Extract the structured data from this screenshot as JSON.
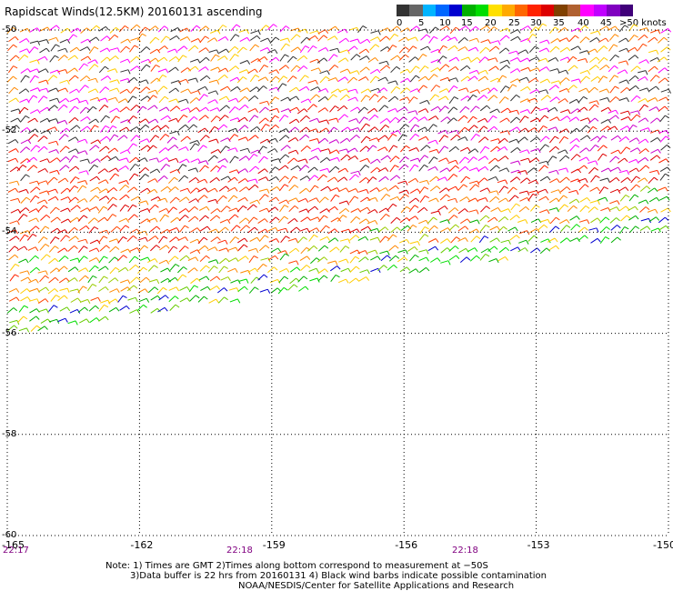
{
  "title": "Rapidscat Winds(12.5KM) 20160131 ascending",
  "legend": {
    "colors": [
      "#333333",
      "#666666",
      "#00b4ff",
      "#0066ff",
      "#0000d0",
      "#00b000",
      "#00dd00",
      "#ffe000",
      "#ffaa00",
      "#ff6600",
      "#ff2200",
      "#dd0000",
      "#804000",
      "#b06030",
      "#ff00ff",
      "#c000ff",
      "#8000c0",
      "#40007a"
    ],
    "ticks": [
      "0",
      "5",
      "10",
      "15",
      "20",
      "25",
      "30",
      "35",
      "40",
      "45",
      ">50 knots"
    ]
  },
  "lat_labels": [
    "-50",
    "-52",
    "-54",
    "-56",
    "-58",
    "-60"
  ],
  "lon_labels": [
    "-165",
    "-162",
    "-159",
    "-156",
    "-153",
    "-150"
  ],
  "time_labels": [
    "22:17",
    "22:18",
    "22:18"
  ],
  "notes": [
    "Note: 1) Times are GMT 2)Times along bottom correspond to measurement at −50S",
    "3)Data buffer is 22 hrs from 20160131 4) Black wind barbs indicate possible contamination",
    "NOAA/NESDIS/Center for Satellite Applications and Research"
  ],
  "map": {
    "lat_range": [
      -60,
      -50
    ],
    "lon_range": [
      -165,
      -150
    ],
    "grid": "dotted",
    "wind_field": {
      "bands": [
        {
          "lat_from": -50,
          "lat_to": -51.5,
          "speed_knots": "20-45",
          "colors": [
            "#ffcc00",
            "#ff8800",
            "#ff4400",
            "#ff00ff",
            "#333333"
          ]
        },
        {
          "lat_from": -51.5,
          "lat_to": -53,
          "speed_knots": "30-50",
          "colors": [
            "#ff00ff",
            "#cc00cc",
            "#ff2200",
            "#dd0000",
            "#333333"
          ]
        },
        {
          "lat_from": -53,
          "lat_to": -54.5,
          "speed_knots": "25-35",
          "colors": [
            "#ff2200",
            "#ff4400",
            "#dd0000",
            "#ff8800"
          ]
        },
        {
          "lat_from": -54.5,
          "lat_to": -55.5,
          "speed_knots": "15-30",
          "colors": [
            "#ffcc00",
            "#ff8800",
            "#00b000",
            "#00dd00",
            "#ff2200"
          ]
        },
        {
          "lat_from": -55.5,
          "lat_to": -56.5,
          "speed_knots": "10-20",
          "colors": [
            "#00b000",
            "#00dd00",
            "#0000d0",
            "#ffcc00"
          ]
        }
      ]
    }
  }
}
